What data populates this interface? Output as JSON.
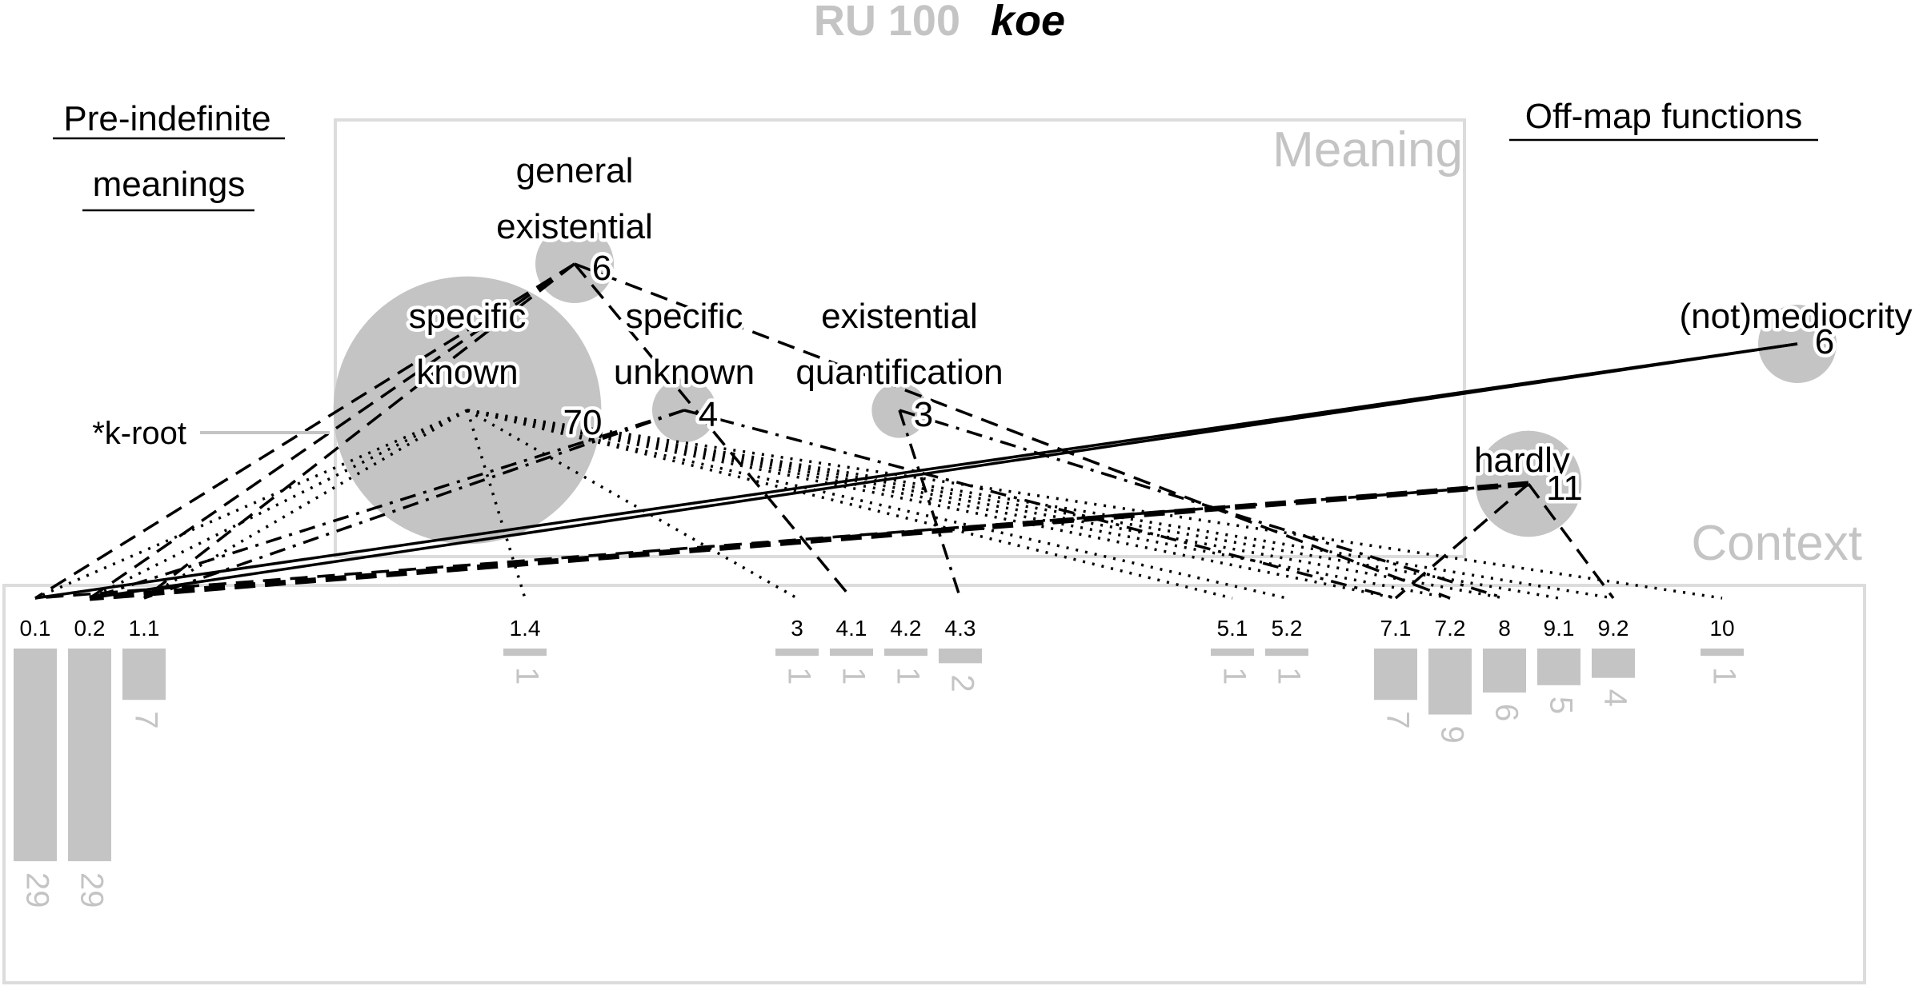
{
  "title": {
    "code": "RU 100",
    "word": "koe"
  },
  "headings": {
    "pre_indefinite": [
      "Pre-indefinite",
      "meanings"
    ],
    "off_map": "Off-map functions"
  },
  "boxes": {
    "meaning": "Meaning",
    "context": "Context"
  },
  "root_label": "*k-root",
  "colors": {
    "bubble": "#c4c4c4",
    "frame": "#dcdcdc",
    "ink": "#000000",
    "count": "#c4c4c4"
  },
  "meanings": [
    {
      "id": "general-existential",
      "lines": [
        "general",
        "existential"
      ],
      "count": 6
    },
    {
      "id": "specific-known",
      "lines": [
        "specific",
        "known"
      ],
      "count": 70
    },
    {
      "id": "specific-unknown",
      "lines": [
        "specific",
        "unknown"
      ],
      "count": 4
    },
    {
      "id": "existential-quantification",
      "lines": [
        "existential",
        "quantification"
      ],
      "count": 3
    },
    {
      "id": "not-mediocrity",
      "lines": [
        "(not)mediocrity"
      ],
      "count": 6
    },
    {
      "id": "hardly",
      "lines": [
        "hardly"
      ],
      "count": 11
    }
  ],
  "contexts": [
    {
      "label": "0.1",
      "count": 29
    },
    {
      "label": "0.2",
      "count": 29
    },
    {
      "label": "1.1",
      "count": 7
    },
    {
      "label": "1.4",
      "count": 1
    },
    {
      "label": "3",
      "count": 1
    },
    {
      "label": "4.1",
      "count": 1
    },
    {
      "label": "4.2",
      "count": 1
    },
    {
      "label": "4.3",
      "count": 2
    },
    {
      "label": "5.1",
      "count": 1
    },
    {
      "label": "5.2",
      "count": 1
    },
    {
      "label": "7.1",
      "count": 7
    },
    {
      "label": "7.2",
      "count": 9
    },
    {
      "label": "8",
      "count": 6
    },
    {
      "label": "9.1",
      "count": 5
    },
    {
      "label": "9.2",
      "count": 4
    },
    {
      "label": "10",
      "count": 1
    }
  ],
  "links": [
    {
      "from": "specific-known",
      "to": "0.1",
      "style": "dotted"
    },
    {
      "from": "specific-known",
      "to": "0.2",
      "style": "dotted"
    },
    {
      "from": "specific-known",
      "to": "1.1",
      "style": "dotted"
    },
    {
      "from": "specific-known",
      "to": "1.4",
      "style": "dotted"
    },
    {
      "from": "specific-known",
      "to": "3",
      "style": "dotted"
    },
    {
      "from": "specific-known",
      "to": "5.1",
      "style": "dotted"
    },
    {
      "from": "specific-known",
      "to": "5.2",
      "style": "dotted"
    },
    {
      "from": "specific-known",
      "to": "7.1",
      "style": "dotted"
    },
    {
      "from": "specific-known",
      "to": "7.2",
      "style": "dotted"
    },
    {
      "from": "specific-known",
      "to": "8",
      "style": "dotted"
    },
    {
      "from": "specific-known",
      "to": "9.1",
      "style": "dotted"
    },
    {
      "from": "specific-known",
      "to": "9.2",
      "style": "dotted"
    },
    {
      "from": "specific-known",
      "to": "10",
      "style": "dotted"
    },
    {
      "from": "general-existential",
      "to": "0.1",
      "style": "dashed"
    },
    {
      "from": "general-existential",
      "to": "0.2",
      "style": "dashed"
    },
    {
      "from": "general-existential",
      "to": "1.1",
      "style": "dashed"
    },
    {
      "from": "general-existential",
      "to": "4.1",
      "style": "dashed"
    },
    {
      "from": "general-existential",
      "to": "7.2",
      "style": "dashed"
    },
    {
      "from": "specific-unknown",
      "to": "0.2",
      "style": "dashdot"
    },
    {
      "from": "specific-unknown",
      "to": "1.1",
      "style": "dashdot"
    },
    {
      "from": "specific-unknown",
      "to": "7.1",
      "style": "dashdot"
    },
    {
      "from": "existential-quantification",
      "to": "4.3",
      "style": "dashdot"
    },
    {
      "from": "existential-quantification",
      "to": "8",
      "style": "dashdot"
    },
    {
      "from": "hardly",
      "to": "0.1",
      "style": "dashed"
    },
    {
      "from": "hardly",
      "to": "0.2",
      "style": "dashed-heavy"
    },
    {
      "from": "hardly",
      "to": "7.1",
      "style": "dashed"
    },
    {
      "from": "hardly",
      "to": "9.2",
      "style": "dashed"
    },
    {
      "from": "not-mediocrity",
      "to": "0.1",
      "style": "solid"
    },
    {
      "from": "not-mediocrity",
      "to": "0.2",
      "style": "solid"
    }
  ]
}
